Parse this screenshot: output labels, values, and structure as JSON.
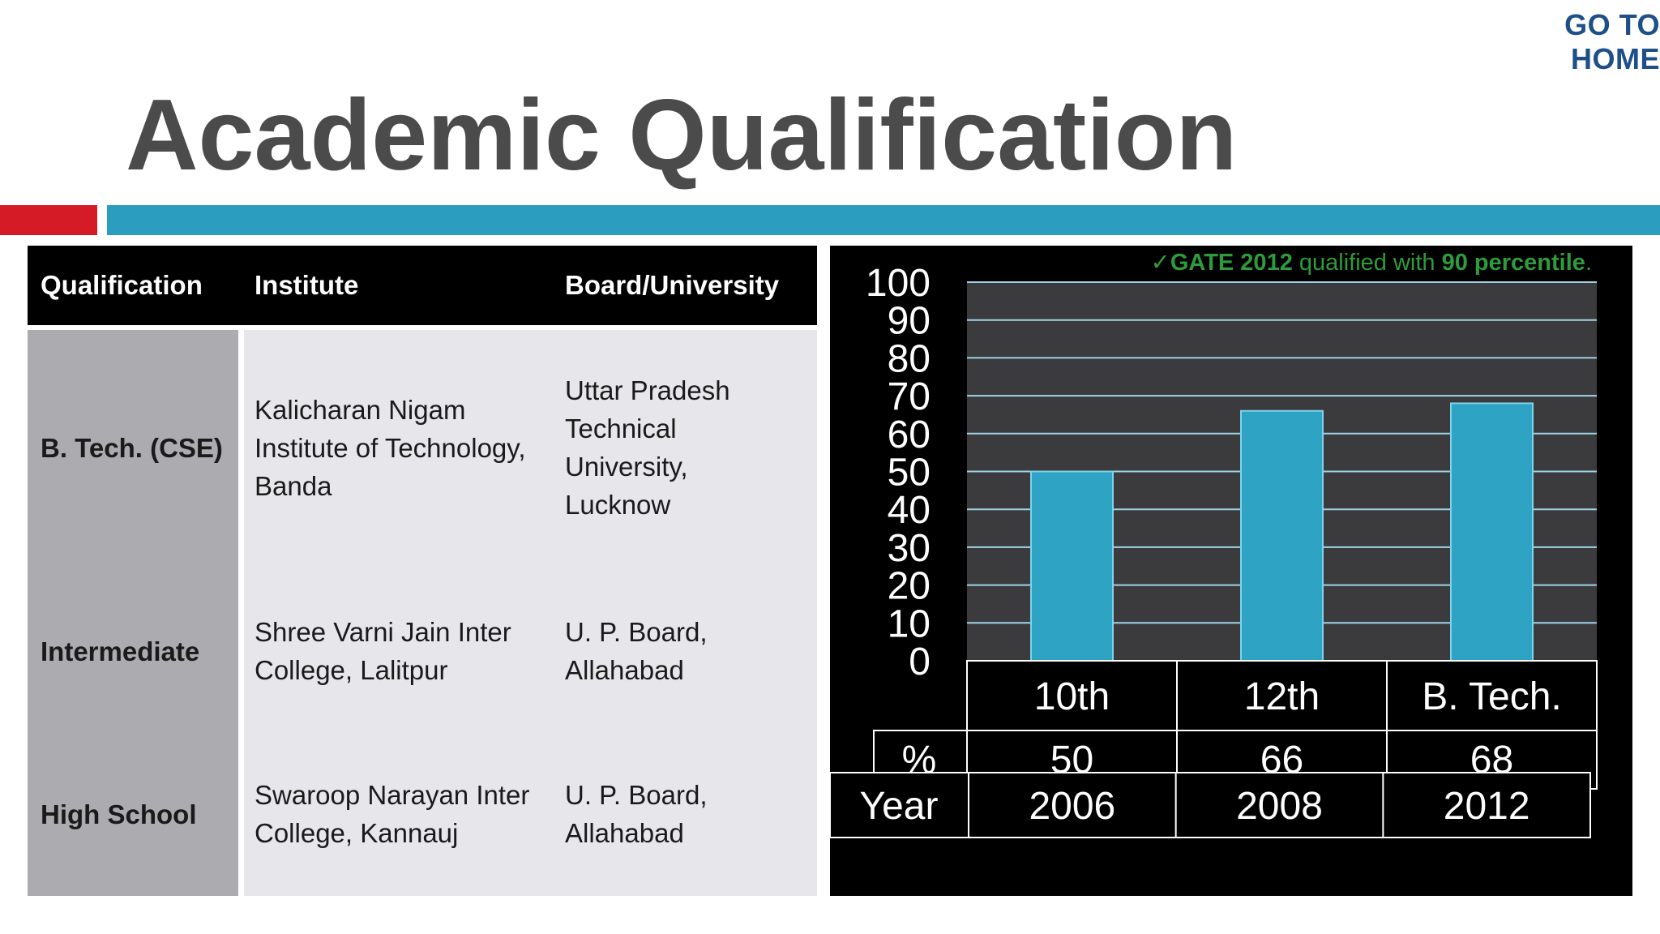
{
  "header": {
    "home_link": "GO TO HOME",
    "title": "Academic Qualification"
  },
  "colors": {
    "title": "#4b4b4b",
    "accent_red": "#d51c26",
    "accent_teal": "#2b9ec0",
    "home_link": "#1d4f88",
    "bar": "#2ea3c3",
    "gate_note": "#2e9b3c"
  },
  "table": {
    "headers": [
      "Qualification",
      "Institute",
      "Board/University"
    ],
    "rows": [
      {
        "qualification": "B. Tech. (CSE)",
        "institute": [
          "Kalicharan Nigam",
          "Institute of Technology,",
          "Banda"
        ],
        "board": [
          "Uttar Pradesh",
          "Technical",
          "University,",
          "Lucknow"
        ]
      },
      {
        "qualification": "Intermediate",
        "institute": [
          "Shree Varni Jain Inter",
          "College, Lalitpur"
        ],
        "board": [
          "U. P. Board,",
          "Allahabad"
        ]
      },
      {
        "qualification": "High School",
        "institute": [
          "Swaroop Narayan Inter",
          "College, Kannauj"
        ],
        "board": [
          "U. P. Board,",
          "Allahabad"
        ]
      }
    ]
  },
  "gate_note": {
    "check": "✓",
    "bold1": "GATE 2012",
    "text1": " qualified with ",
    "bold2": "90 percentile",
    "text2": "."
  },
  "chart_data": {
    "type": "bar",
    "categories": [
      "10th",
      "12th",
      "B. Tech."
    ],
    "values": [
      50,
      66,
      68
    ],
    "ylim": [
      0,
      100
    ],
    "yticks": [
      "100",
      "90",
      "80",
      "70",
      "60",
      "50",
      "40",
      "30",
      "20",
      "10",
      "0"
    ],
    "grid": true,
    "data_table": {
      "value_row_label": "%",
      "value_row": [
        "50",
        "66",
        "68"
      ],
      "year_row_label": "Year",
      "year_row": [
        "2006",
        "2008",
        "2012"
      ]
    }
  }
}
